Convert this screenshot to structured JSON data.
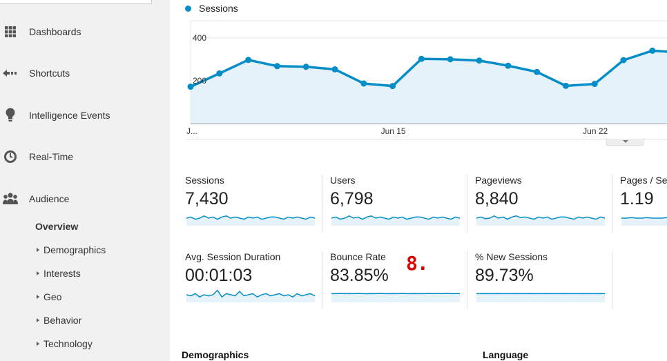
{
  "sidebar": {
    "items": [
      {
        "label": "Dashboards",
        "icon": "dashboards-grid-icon"
      },
      {
        "label": "Shortcuts",
        "icon": "shortcuts-arrow-icon"
      },
      {
        "label": "Intelligence Events",
        "icon": "lightbulb-icon"
      },
      {
        "label": "Real-Time",
        "icon": "clock-icon"
      },
      {
        "label": "Audience",
        "icon": "people-icon"
      }
    ],
    "overview": "Overview",
    "subitems": [
      "Demographics",
      "Interests",
      "Geo",
      "Behavior",
      "Technology"
    ]
  },
  "chart": {
    "legend": "Sessions",
    "colors": {
      "line": "#058dc7",
      "fill": "#e6f2fa"
    },
    "y_ticks": [
      "400",
      "200"
    ],
    "x_ticks": [
      "J...",
      "Jun 15",
      "Jun 22"
    ]
  },
  "chart_data": {
    "type": "area",
    "series": [
      {
        "name": "Sessions",
        "values": [
          172,
          234,
          297,
          268,
          265,
          253,
          187,
          175,
          302,
          300,
          294,
          270,
          241,
          176,
          185,
          296,
          340,
          332
        ]
      }
    ],
    "ylim": [
      0,
      480
    ],
    "y_ticks": [
      200,
      400
    ],
    "x_tick_labels": [
      "J...",
      "Jun 15",
      "Jun 22"
    ],
    "grid": true
  },
  "metrics": [
    {
      "label": "Sessions",
      "value": "7,430",
      "spark": [
        0.5,
        0.6,
        0.4,
        0.5,
        0.7,
        0.5,
        0.6,
        0.4,
        0.6,
        0.7,
        0.5,
        0.6,
        0.5,
        0.4,
        0.6,
        0.5,
        0.6,
        0.4,
        0.5,
        0.6,
        0.6,
        0.5,
        0.4,
        0.6,
        0.5,
        0.6,
        0.5,
        0.4,
        0.6,
        0.5
      ]
    },
    {
      "label": "Users",
      "value": "6,798",
      "spark": [
        0.5,
        0.6,
        0.4,
        0.5,
        0.7,
        0.5,
        0.6,
        0.4,
        0.6,
        0.7,
        0.5,
        0.6,
        0.5,
        0.4,
        0.6,
        0.5,
        0.6,
        0.4,
        0.5,
        0.6,
        0.6,
        0.5,
        0.4,
        0.6,
        0.5,
        0.6,
        0.5,
        0.4,
        0.6,
        0.5
      ]
    },
    {
      "label": "Pageviews",
      "value": "8,840",
      "spark": [
        0.5,
        0.6,
        0.45,
        0.5,
        0.7,
        0.5,
        0.6,
        0.4,
        0.6,
        0.7,
        0.55,
        0.6,
        0.5,
        0.4,
        0.6,
        0.5,
        0.6,
        0.4,
        0.5,
        0.6,
        0.6,
        0.5,
        0.4,
        0.6,
        0.5,
        0.6,
        0.5,
        0.4,
        0.6,
        0.5
      ]
    },
    {
      "label": "Pages / Se",
      "value": "1.19",
      "spark": [
        0.5,
        0.5,
        0.55,
        0.5,
        0.5,
        0.55,
        0.5,
        0.5,
        0.5,
        0.55
      ]
    },
    {
      "label": "Avg. Session Duration",
      "value": "00:01:03",
      "spark": [
        0.5,
        0.4,
        0.6,
        0.3,
        0.5,
        0.4,
        0.5,
        0.9,
        0.3,
        0.6,
        0.5,
        0.4,
        0.8,
        0.4,
        0.5,
        0.6,
        0.3,
        0.5,
        0.6,
        0.4,
        0.5,
        0.6,
        0.4,
        0.5,
        0.3,
        0.6,
        0.4,
        0.5,
        0.6,
        0.4
      ]
    },
    {
      "label": "Bounce Rate",
      "value": "83.85%",
      "spark": [
        0.6,
        0.6,
        0.62,
        0.6,
        0.61,
        0.6,
        0.62,
        0.6,
        0.59,
        0.61,
        0.6,
        0.62,
        0.6,
        0.6,
        0.61,
        0.6,
        0.62,
        0.6,
        0.6,
        0.61,
        0.6,
        0.6,
        0.62,
        0.6,
        0.61,
        0.6,
        0.62,
        0.6,
        0.6,
        0.61
      ]
    },
    {
      "label": "% New Sessions",
      "value": "89.73%",
      "spark": [
        0.6,
        0.6,
        0.61,
        0.6,
        0.6,
        0.61,
        0.6,
        0.6,
        0.6,
        0.61,
        0.6,
        0.6,
        0.61,
        0.6,
        0.6,
        0.6,
        0.61,
        0.6,
        0.6,
        0.6,
        0.61,
        0.6,
        0.6,
        0.6,
        0.61,
        0.6,
        0.6,
        0.6,
        0.61,
        0.6
      ]
    }
  ],
  "annotation": "8.",
  "sections": {
    "demographics": "Demographics",
    "language": "Language"
  }
}
